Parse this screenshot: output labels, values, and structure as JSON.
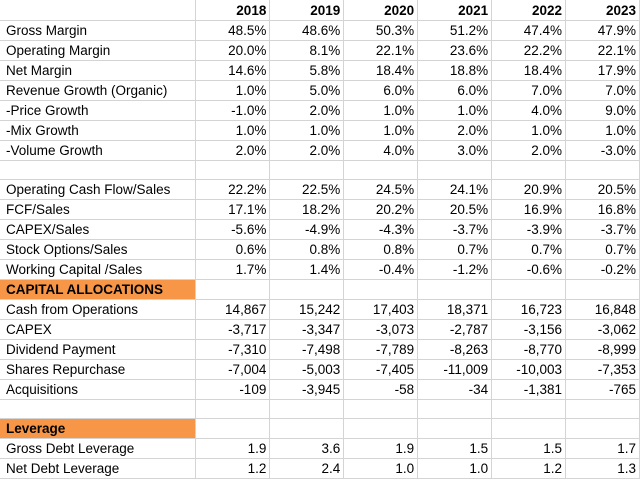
{
  "years": [
    "2018",
    "2019",
    "2020",
    "2021",
    "2022",
    "2023"
  ],
  "metrics_group1": [
    {
      "label": "Gross Margin",
      "values": [
        "48.5%",
        "48.6%",
        "50.3%",
        "51.2%",
        "47.4%",
        "47.9%"
      ]
    },
    {
      "label": "Operating Margin",
      "values": [
        "20.0%",
        "8.1%",
        "22.1%",
        "23.6%",
        "22.2%",
        "22.1%"
      ]
    },
    {
      "label": "Net Margin",
      "values": [
        "14.6%",
        "5.8%",
        "18.4%",
        "18.8%",
        "18.4%",
        "17.9%"
      ]
    },
    {
      "label": "Revenue Growth (Organic)",
      "values": [
        "1.0%",
        "5.0%",
        "6.0%",
        "6.0%",
        "7.0%",
        "7.0%"
      ]
    },
    {
      "label": "-Price Growth",
      "values": [
        "-1.0%",
        "2.0%",
        "1.0%",
        "1.0%",
        "4.0%",
        "9.0%"
      ]
    },
    {
      "label": "-Mix Growth",
      "values": [
        "1.0%",
        "1.0%",
        "1.0%",
        "2.0%",
        "1.0%",
        "1.0%"
      ]
    },
    {
      "label": "-Volume Growth",
      "values": [
        "2.0%",
        "2.0%",
        "4.0%",
        "3.0%",
        "2.0%",
        "-3.0%"
      ]
    }
  ],
  "metrics_group2": [
    {
      "label": "Operating Cash Flow/Sales",
      "values": [
        "22.2%",
        "22.5%",
        "24.5%",
        "24.1%",
        "20.9%",
        "20.5%"
      ]
    },
    {
      "label": "FCF/Sales",
      "values": [
        "17.1%",
        "18.2%",
        "20.2%",
        "20.5%",
        "16.9%",
        "16.8%"
      ]
    },
    {
      "label": "CAPEX/Sales",
      "values": [
        "-5.6%",
        "-4.9%",
        "-4.3%",
        "-3.7%",
        "-3.9%",
        "-3.7%"
      ]
    },
    {
      "label": "Stock Options/Sales",
      "values": [
        "0.6%",
        "0.8%",
        "0.8%",
        "0.7%",
        "0.7%",
        "0.7%"
      ]
    },
    {
      "label": "Working Capital /Sales",
      "values": [
        "1.7%",
        "1.4%",
        "-0.4%",
        "-1.2%",
        "-0.6%",
        "-0.2%"
      ]
    }
  ],
  "capital_allocations": {
    "title": "CAPITAL ALLOCATIONS",
    "rows": [
      {
        "label": "Cash from Operations",
        "values": [
          "14,867",
          "15,242",
          "17,403",
          "18,371",
          "16,723",
          "16,848"
        ]
      },
      {
        "label": "CAPEX",
        "values": [
          "-3,717",
          "-3,347",
          "-3,073",
          "-2,787",
          "-3,156",
          "-3,062"
        ]
      },
      {
        "label": "Dividend Payment",
        "values": [
          "-7,310",
          "-7,498",
          "-7,789",
          "-8,263",
          "-8,770",
          "-8,999"
        ]
      },
      {
        "label": "Shares Repurchase",
        "values": [
          "-7,004",
          "-5,003",
          "-7,405",
          "-11,009",
          "-10,003",
          "-7,353"
        ]
      },
      {
        "label": "Acquisitions",
        "values": [
          "-109",
          "-3,945",
          "-58",
          "-34",
          "-1,381",
          "-765"
        ]
      }
    ]
  },
  "leverage": {
    "title": "Leverage",
    "rows": [
      {
        "label": "Gross Debt Leverage",
        "values": [
          "1.9",
          "3.6",
          "1.9",
          "1.5",
          "1.5",
          "1.7"
        ]
      },
      {
        "label": "Net Debt Leverage",
        "values": [
          "1.2",
          "2.4",
          "1.0",
          "1.0",
          "1.2",
          "1.3"
        ]
      }
    ]
  },
  "colors": {
    "section_header_fill": "#f79646",
    "grid_line": "#d4d4d4"
  }
}
